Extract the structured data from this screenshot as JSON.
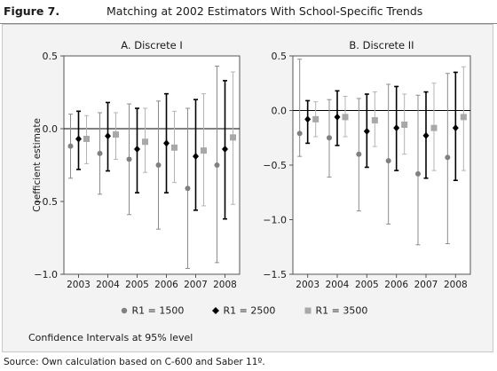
{
  "figure_label": "Figure 7.",
  "title": "Matching at 2002 Estimators With School-Specific Trends",
  "note": "Confidence Intervals at 95% level",
  "source": "Source: Own calculation based on C-600 and Saber 11º.",
  "legend": [
    {
      "name": "R1 = 1500",
      "marker": "circle",
      "color": "#808080"
    },
    {
      "name": "R1 = 2500",
      "marker": "diamond",
      "color": "#000000"
    },
    {
      "name": "R1 = 3500",
      "marker": "square",
      "color": "#a8a8a8"
    }
  ],
  "chart_data": [
    {
      "type": "scatter",
      "subtitle": "A. Discrete I",
      "xlabel": "",
      "ylabel": "Coefficient estimate",
      "categories": [
        "2003",
        "2004",
        "2005",
        "2006",
        "2007",
        "2008"
      ],
      "ylim": [
        -1.0,
        0.5
      ],
      "yticks": [
        -1.0,
        -0.5,
        0.0,
        0.5
      ],
      "ytick_labels": [
        "−1.0",
        "−0.5",
        "0.0",
        "0.5"
      ],
      "series": [
        {
          "name": "R1 = 1500",
          "values": [
            -0.12,
            -0.17,
            -0.21,
            -0.25,
            -0.41,
            -0.25
          ],
          "lower": [
            -0.34,
            -0.45,
            -0.59,
            -0.69,
            -0.96,
            -0.92
          ],
          "upper": [
            0.1,
            0.11,
            0.17,
            0.19,
            0.14,
            0.43
          ]
        },
        {
          "name": "R1 = 2500",
          "values": [
            -0.07,
            -0.05,
            -0.14,
            -0.1,
            -0.19,
            -0.14
          ],
          "lower": [
            -0.28,
            -0.29,
            -0.44,
            -0.44,
            -0.56,
            -0.62
          ],
          "upper": [
            0.12,
            0.18,
            0.14,
            0.24,
            0.2,
            0.33
          ]
        },
        {
          "name": "R1 = 3500",
          "values": [
            -0.07,
            -0.04,
            -0.09,
            -0.13,
            -0.15,
            -0.06
          ],
          "lower": [
            -0.24,
            -0.21,
            -0.3,
            -0.37,
            -0.53,
            -0.52
          ],
          "upper": [
            0.09,
            0.11,
            0.14,
            0.12,
            0.24,
            0.39
          ]
        }
      ]
    },
    {
      "type": "scatter",
      "subtitle": "B. Discrete II",
      "xlabel": "",
      "ylabel": "",
      "categories": [
        "2003",
        "2004",
        "2005",
        "2006",
        "2007",
        "2008"
      ],
      "ylim": [
        -1.5,
        0.5
      ],
      "yticks": [
        -1.5,
        -1.0,
        -0.5,
        0.0,
        0.5
      ],
      "ytick_labels": [
        "−1.5",
        "−1.0",
        "−0.5",
        "0.0",
        "0.5"
      ],
      "series": [
        {
          "name": "R1 = 1500",
          "values": [
            -0.21,
            -0.25,
            -0.4,
            -0.46,
            -0.58,
            -0.43
          ],
          "lower": [
            -0.42,
            -0.61,
            -0.92,
            -1.04,
            -1.23,
            -1.22
          ],
          "upper": [
            0.47,
            0.1,
            0.11,
            0.24,
            0.14,
            0.34
          ]
        },
        {
          "name": "R1 = 2500",
          "values": [
            -0.08,
            -0.06,
            -0.19,
            -0.16,
            -0.23,
            -0.16
          ],
          "lower": [
            -0.3,
            -0.32,
            -0.52,
            -0.55,
            -0.62,
            -0.64
          ],
          "upper": [
            0.09,
            0.18,
            0.15,
            0.22,
            0.17,
            0.35
          ]
        },
        {
          "name": "R1 = 3500",
          "values": [
            -0.08,
            -0.06,
            -0.09,
            -0.13,
            -0.16,
            -0.06
          ],
          "lower": [
            -0.24,
            -0.24,
            -0.33,
            -0.4,
            -0.55,
            -0.55
          ],
          "upper": [
            0.08,
            0.13,
            0.17,
            0.15,
            0.25,
            0.4
          ]
        }
      ]
    }
  ]
}
